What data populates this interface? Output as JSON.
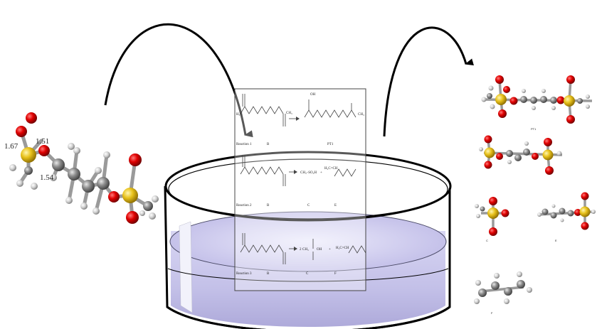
{
  "molecule_left": {
    "bond_labels": [
      "1.67",
      "1.51",
      "1.54"
    ]
  },
  "reaction_sheet": {
    "reactions": [
      {
        "label": "Reaction 1",
        "species": [
          "B",
          "PT1"
        ]
      },
      {
        "label": "Reaction 2",
        "species": [
          "B",
          "C",
          "E"
        ]
      },
      {
        "label": "Reaction 3",
        "species": [
          "B",
          "C",
          "F"
        ]
      }
    ],
    "fragments": {
      "oh": "OH",
      "ch3": "CH₃",
      "h3c": "H₃C",
      "o": "O",
      "h2c_ch": "H₂C=CH",
      "ch3so3h": "CH₃–SO₃H",
      "plus": "+",
      "two": "2"
    }
  },
  "product_labels": [
    "PT1",
    "C",
    "E",
    "F"
  ],
  "colors": {
    "oxygen": "#d40000",
    "sulfur": "#e6c21e",
    "carbon": "#8a8a8a",
    "hydrogen": "#d8d8d8",
    "liquid": "#c8c6ec",
    "arrow": "#000000"
  }
}
